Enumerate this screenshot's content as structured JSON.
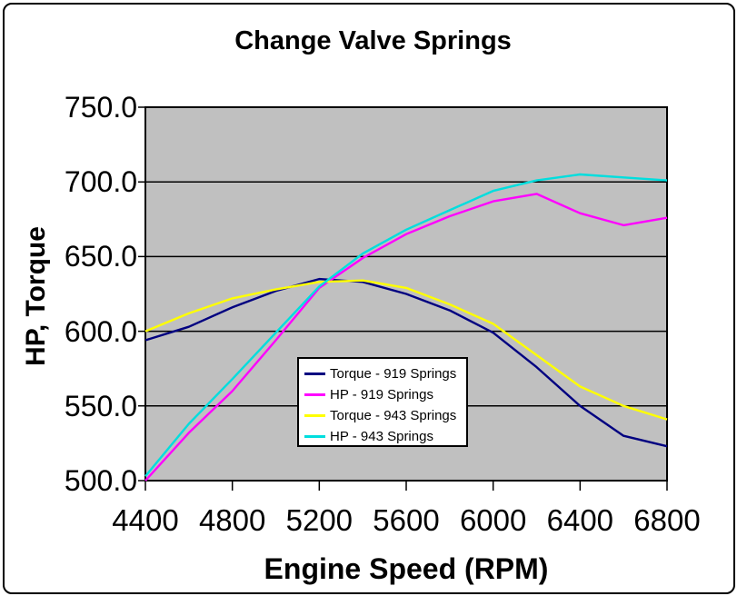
{
  "window": {
    "background": "#ffffff",
    "border_color": "#000000"
  },
  "chart_data": {
    "type": "line",
    "title": "Change Valve Springs",
    "xlabel": "Engine Speed (RPM)",
    "ylabel": "HP, Torque",
    "xlim": [
      4400,
      6800
    ],
    "ylim": [
      500,
      750
    ],
    "xticks": [
      4400,
      4800,
      5200,
      5600,
      6000,
      6400,
      6800
    ],
    "xtick_labels": [
      "4400",
      "4800",
      "5200",
      "5600",
      "6000",
      "6400",
      "6800"
    ],
    "yticks": [
      500,
      550,
      600,
      650,
      700,
      750
    ],
    "ytick_labels": [
      "500.0",
      "550.0",
      "600.0",
      "650.0",
      "700.0",
      "750.0"
    ],
    "grid": "horizontal-only",
    "grid_color": "#000000",
    "plot_background": "#c0c0c0",
    "legend_position": "inside-lower-center",
    "x": [
      4400,
      4600,
      4800,
      5000,
      5200,
      5400,
      5600,
      5800,
      6000,
      6200,
      6400,
      6600,
      6800
    ],
    "series": [
      {
        "name": "Torque - 919 Springs",
        "color": "#000080",
        "values": [
          594,
          603,
          616,
          627,
          635,
          633,
          625,
          614,
          599,
          576,
          550,
          530,
          523
        ]
      },
      {
        "name": "HP - 919 Springs",
        "color": "#ff00ff",
        "values": [
          500,
          532,
          560,
          594,
          629,
          649,
          665,
          677,
          687,
          692,
          679,
          671,
          676
        ]
      },
      {
        "name": "Torque - 943 Springs",
        "color": "#ffff00",
        "values": [
          600,
          612,
          622,
          628,
          633,
          634,
          629,
          618,
          605,
          584,
          563,
          550,
          541
        ]
      },
      {
        "name": "HP - 943 Springs",
        "color": "#00dede",
        "values": [
          503,
          538,
          568,
          599,
          630,
          652,
          668,
          681,
          694,
          701,
          705,
          703,
          701
        ]
      }
    ]
  }
}
